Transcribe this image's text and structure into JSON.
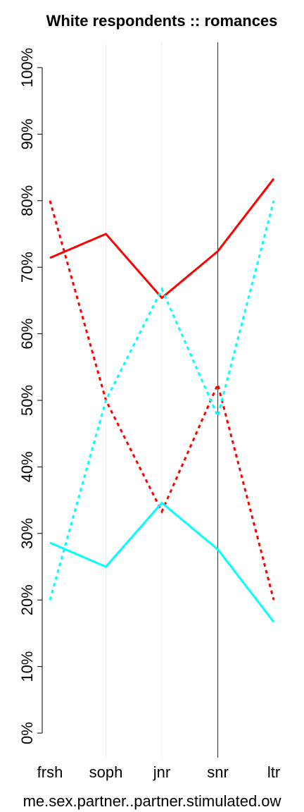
{
  "chart_data": {
    "type": "line",
    "title": "White respondents :: romances",
    "x_label": "me.sex.partner..partner.stimulated.ow",
    "categories": [
      "frsh",
      "soph",
      "jnr",
      "snr",
      "ltr"
    ],
    "series": [
      {
        "color": "#ff0000",
        "style": "solid",
        "values": [
          71.4,
          75.0,
          65.4,
          72.4,
          83.3
        ]
      },
      {
        "color": "#ff0000",
        "style": "dotted",
        "values": [
          80.0,
          50.0,
          33.3,
          52.4,
          20.0
        ]
      },
      {
        "color": "#00ffff",
        "style": "solid",
        "values": [
          28.6,
          25.0,
          34.6,
          27.6,
          16.7
        ]
      },
      {
        "color": "#00ffff",
        "style": "dotted",
        "values": [
          20.0,
          50.0,
          66.7,
          47.6,
          80.0
        ]
      }
    ],
    "ylim": [
      -3.7,
      103.8
    ],
    "yticks": [
      {
        "value": 0,
        "label": "0%"
      },
      {
        "value": 10,
        "label": "10%"
      },
      {
        "value": 20,
        "label": "20%"
      },
      {
        "value": 30,
        "label": "30%"
      },
      {
        "value": 40,
        "label": "40%"
      },
      {
        "value": 50,
        "label": "50%"
      },
      {
        "value": 60,
        "label": "60%"
      },
      {
        "value": 70,
        "label": "70%"
      },
      {
        "value": 80,
        "label": "80%"
      },
      {
        "value": 90,
        "label": "90%"
      },
      {
        "value": 100,
        "label": "100%"
      }
    ]
  }
}
